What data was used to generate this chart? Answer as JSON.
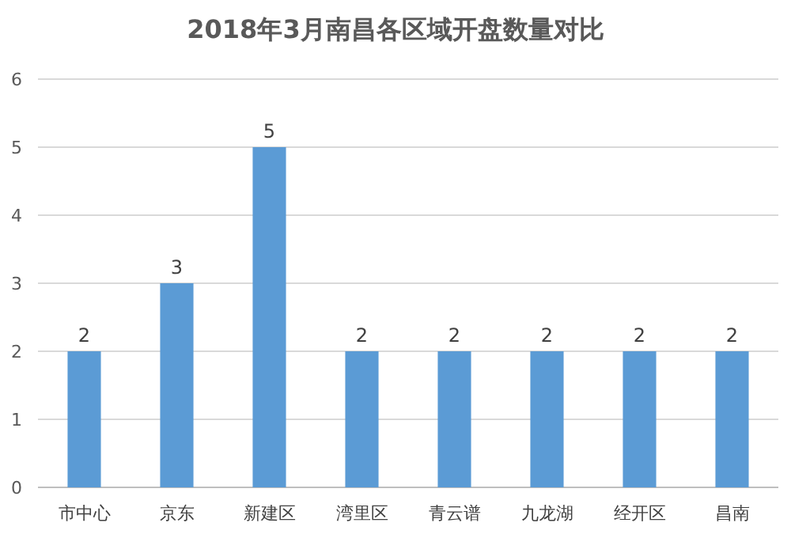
{
  "chart_data": {
    "type": "bar",
    "title": "2018年3月南昌各区域开盘数量对比",
    "categories": [
      "市中心",
      "京东",
      "新建区",
      "湾里区",
      "青云谱",
      "九龙湖",
      "经开区",
      "昌南"
    ],
    "values": [
      2,
      3,
      5,
      2,
      2,
      2,
      2,
      2
    ],
    "color": "#5b9bd5",
    "ylim": [
      0,
      6
    ],
    "yticks": [
      0,
      1,
      2,
      3,
      4,
      5,
      6
    ],
    "grid": "y",
    "data_labels": true
  }
}
